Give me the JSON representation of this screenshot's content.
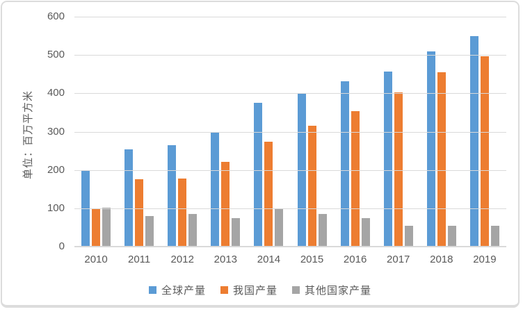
{
  "chart_data": {
    "type": "bar",
    "title": "",
    "ylabel": "单位：百万平方米",
    "xlabel": "",
    "categories": [
      "2010",
      "2011",
      "2012",
      "2013",
      "2014",
      "2015",
      "2016",
      "2017",
      "2018",
      "2019"
    ],
    "series": [
      {
        "key": "global",
        "name": "全球产量",
        "color": "#5B9BD5",
        "values": [
          200,
          253,
          265,
          298,
          375,
          400,
          432,
          457,
          510,
          550
        ]
      },
      {
        "key": "china",
        "name": "我国产量",
        "color": "#ED7D31",
        "values": [
          100,
          175,
          178,
          222,
          273,
          315,
          353,
          403,
          455,
          497
        ]
      },
      {
        "key": "others",
        "name": "其他国家产量",
        "color": "#A5A5A5",
        "values": [
          102,
          80,
          85,
          75,
          100,
          85,
          75,
          55,
          55,
          55
        ]
      }
    ],
    "ylim": [
      0,
      600
    ],
    "ytick_interval": 100,
    "yticks": [
      "600",
      "500",
      "400",
      "300",
      "200",
      "100",
      "0"
    ],
    "grid": true,
    "legend_position": "bottom"
  },
  "colors": {
    "axis_text": "#595959",
    "gridline": "#d9d9d9",
    "frame_border": "#dcdcdc",
    "background": "#ffffff"
  }
}
